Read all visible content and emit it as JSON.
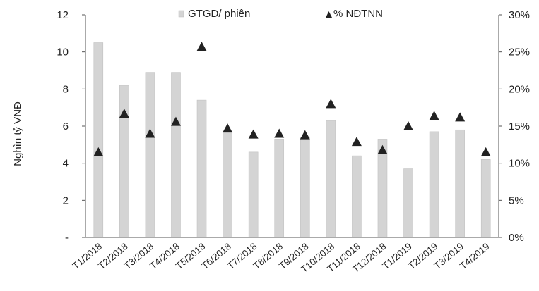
{
  "chart_data": {
    "type": "bar",
    "categories": [
      "T1/2018",
      "T2/2018",
      "T3/2018",
      "T4/2018",
      "T5/2018",
      "T6/2018",
      "T7/2018",
      "T8/2018",
      "T9/2018",
      "T10/2018",
      "T11/2018",
      "T12/2018",
      "T1/2019",
      "T2/2019",
      "T3/2019",
      "T4/2019"
    ],
    "series": [
      {
        "name": "GTGD/ phiên",
        "type": "bar",
        "axis": "left",
        "color": "#d4d4d4",
        "values": [
          10.5,
          8.2,
          8.9,
          8.9,
          7.4,
          5.7,
          4.6,
          5.3,
          5.4,
          6.3,
          4.4,
          5.3,
          3.7,
          5.7,
          5.8,
          4.2
        ]
      },
      {
        "name": "% NĐTNN",
        "type": "scatter",
        "marker": "triangle",
        "axis": "right",
        "color": "#222222",
        "values": [
          11.5,
          16.7,
          14.0,
          15.6,
          25.7,
          14.7,
          13.9,
          14.0,
          13.8,
          18.0,
          12.9,
          11.8,
          15.0,
          16.4,
          16.2,
          11.5
        ]
      }
    ],
    "ylabel": "Nghìn tỷ VNĐ",
    "ylim": [
      0,
      12
    ],
    "y_ticks": [
      "-",
      "2",
      "4",
      "6",
      "8",
      "10",
      "12"
    ],
    "y2lim": [
      0,
      30
    ],
    "y2_ticks": [
      "0%",
      "5%",
      "10%",
      "15%",
      "20%",
      "25%",
      "30%"
    ],
    "grid": false,
    "legend": "top-center"
  }
}
